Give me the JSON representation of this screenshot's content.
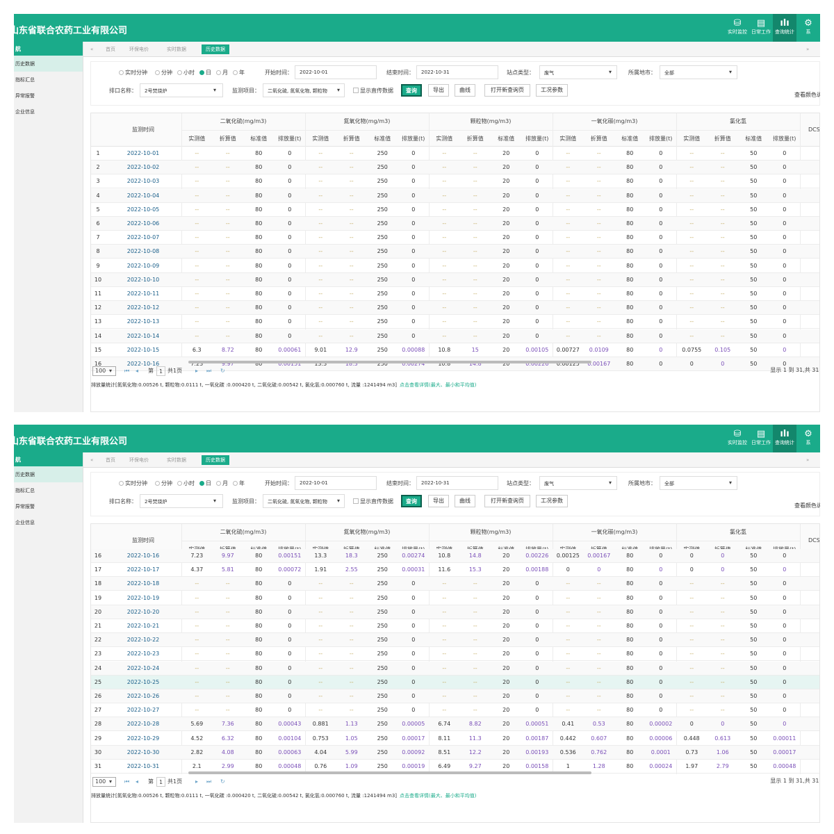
{
  "app": {
    "company": "山东省联合农药工业有限公司",
    "nav": [
      {
        "label": "实时监控",
        "icon": "database-icon"
      },
      {
        "label": "日常工作",
        "icon": "briefcase-icon"
      },
      {
        "label": "查询统计",
        "icon": "chart-icon"
      },
      {
        "label": "系",
        "icon": "gear-icon"
      }
    ],
    "sidebar_title": "航",
    "sidebar": [
      "历史数据",
      "指标汇总",
      "异常报警",
      "企业信息"
    ],
    "tabs": [
      "首页",
      "环保电价",
      "实时数据",
      "历史数据"
    ],
    "accent": "#1aab8a"
  },
  "filters": {
    "granularity": [
      "实时分钟",
      "分钟",
      "小时",
      "日",
      "月",
      "年"
    ],
    "granularity_selected": "日",
    "start_label": "开始时间：",
    "start_value": "2022-10-01",
    "end_label": "结束时间：",
    "end_value": "2022-10-31",
    "station_type_label": "站点类型：",
    "station_type_value": "废气",
    "region_label": "所属地市：",
    "region_value": "全部",
    "outlet_label": "排口名称：",
    "outlet_value": "2号焚烧炉",
    "item_label": "监测项目：",
    "item_value": "二氧化硫, 氮氧化物, 颗粒物",
    "show_checkbox": "显示直传数据",
    "buttons": [
      "查询",
      "导出",
      "曲线",
      "打开新查询页",
      "工况参数"
    ],
    "color_legend_link": "查看颜色说明"
  },
  "table": {
    "time_header": "监测时间",
    "groups": [
      "二氧化硫(mg/m3)",
      "氮氧化物(mg/m3)",
      "颗粒物(mg/m3)",
      "一氧化碳(mg/m3)",
      "氯化氢"
    ],
    "subcols": [
      "实测值",
      "折算值",
      "标准值",
      "排放量(t)"
    ],
    "dcs_header": "DCS温度(",
    "rows": [
      [
        "2022-10-01",
        "--",
        "--",
        "80",
        "0",
        "--",
        "--",
        "250",
        "0",
        "--",
        "--",
        "20",
        "0",
        "--",
        "--",
        "80",
        "0",
        "--",
        "--",
        "50",
        "0",
        "/"
      ],
      [
        "2022-10-02",
        "--",
        "--",
        "80",
        "0",
        "--",
        "--",
        "250",
        "0",
        "--",
        "--",
        "20",
        "0",
        "--",
        "--",
        "80",
        "0",
        "--",
        "--",
        "50",
        "0",
        "/"
      ],
      [
        "2022-10-03",
        "--",
        "--",
        "80",
        "0",
        "--",
        "--",
        "250",
        "0",
        "--",
        "--",
        "20",
        "0",
        "--",
        "--",
        "80",
        "0",
        "--",
        "--",
        "50",
        "0",
        "/"
      ],
      [
        "2022-10-04",
        "--",
        "--",
        "80",
        "0",
        "--",
        "--",
        "250",
        "0",
        "--",
        "--",
        "20",
        "0",
        "--",
        "--",
        "80",
        "0",
        "--",
        "--",
        "50",
        "0",
        "/"
      ],
      [
        "2022-10-05",
        "--",
        "--",
        "80",
        "0",
        "--",
        "--",
        "250",
        "0",
        "--",
        "--",
        "20",
        "0",
        "--",
        "--",
        "80",
        "0",
        "--",
        "--",
        "50",
        "0",
        "/"
      ],
      [
        "2022-10-06",
        "--",
        "--",
        "80",
        "0",
        "--",
        "--",
        "250",
        "0",
        "--",
        "--",
        "20",
        "0",
        "--",
        "--",
        "80",
        "0",
        "--",
        "--",
        "50",
        "0",
        "/"
      ],
      [
        "2022-10-07",
        "--",
        "--",
        "80",
        "0",
        "--",
        "--",
        "250",
        "0",
        "--",
        "--",
        "20",
        "0",
        "--",
        "--",
        "80",
        "0",
        "--",
        "--",
        "50",
        "0",
        "/"
      ],
      [
        "2022-10-08",
        "--",
        "--",
        "80",
        "0",
        "--",
        "--",
        "250",
        "0",
        "--",
        "--",
        "20",
        "0",
        "--",
        "--",
        "80",
        "0",
        "--",
        "--",
        "50",
        "0",
        "/"
      ],
      [
        "2022-10-09",
        "--",
        "--",
        "80",
        "0",
        "--",
        "--",
        "250",
        "0",
        "--",
        "--",
        "20",
        "0",
        "--",
        "--",
        "80",
        "0",
        "--",
        "--",
        "50",
        "0",
        "/"
      ],
      [
        "2022-10-10",
        "--",
        "--",
        "80",
        "0",
        "--",
        "--",
        "250",
        "0",
        "--",
        "--",
        "20",
        "0",
        "--",
        "--",
        "80",
        "0",
        "--",
        "--",
        "50",
        "0",
        "/"
      ],
      [
        "2022-10-11",
        "--",
        "--",
        "80",
        "0",
        "--",
        "--",
        "250",
        "0",
        "--",
        "--",
        "20",
        "0",
        "--",
        "--",
        "80",
        "0",
        "--",
        "--",
        "50",
        "0",
        "/"
      ],
      [
        "2022-10-12",
        "--",
        "--",
        "80",
        "0",
        "--",
        "--",
        "250",
        "0",
        "--",
        "--",
        "20",
        "0",
        "--",
        "--",
        "80",
        "0",
        "--",
        "--",
        "50",
        "0",
        "/"
      ],
      [
        "2022-10-13",
        "--",
        "--",
        "80",
        "0",
        "--",
        "--",
        "250",
        "0",
        "--",
        "--",
        "20",
        "0",
        "--",
        "--",
        "80",
        "0",
        "--",
        "--",
        "50",
        "0",
        "/"
      ],
      [
        "2022-10-14",
        "--",
        "--",
        "80",
        "0",
        "--",
        "--",
        "250",
        "0",
        "--",
        "--",
        "20",
        "0",
        "--",
        "--",
        "80",
        "0",
        "--",
        "--",
        "50",
        "0",
        "/"
      ],
      [
        "2022-10-15",
        "6.3",
        "8.72",
        "80",
        "0.00061",
        "9.01",
        "12.9",
        "250",
        "0.00088",
        "10.8",
        "15",
        "20",
        "0.00105",
        "0.00727",
        "0.0109",
        "80",
        "0",
        "0.0755",
        "0.105",
        "50",
        "0",
        "/"
      ],
      [
        "2022-10-16",
        "7.23",
        "9.97",
        "80",
        "0.00151",
        "13.3",
        "18.3",
        "250",
        "0.00274",
        "10.8",
        "14.8",
        "20",
        "0.00226",
        "0.00125",
        "0.00167",
        "80",
        "0",
        "0",
        "0",
        "50",
        "0",
        "/"
      ],
      [
        "2022-10-17",
        "4.37",
        "5.81",
        "80",
        "0.00072",
        "1.91",
        "2.55",
        "250",
        "0.00031",
        "11.6",
        "15.3",
        "20",
        "0.00188",
        "0",
        "0",
        "80",
        "0",
        "0",
        "0",
        "50",
        "0",
        "/"
      ],
      [
        "2022-10-18",
        "--",
        "--",
        "80",
        "0",
        "--",
        "--",
        "250",
        "0",
        "--",
        "--",
        "20",
        "0",
        "--",
        "--",
        "80",
        "0",
        "--",
        "--",
        "50",
        "0",
        "/"
      ],
      [
        "2022-10-19",
        "--",
        "--",
        "80",
        "0",
        "--",
        "--",
        "250",
        "0",
        "--",
        "--",
        "20",
        "0",
        "--",
        "--",
        "80",
        "0",
        "--",
        "--",
        "50",
        "0",
        "/"
      ],
      [
        "2022-10-20",
        "--",
        "--",
        "80",
        "0",
        "--",
        "--",
        "250",
        "0",
        "--",
        "--",
        "20",
        "0",
        "--",
        "--",
        "80",
        "0",
        "--",
        "--",
        "50",
        "0",
        "/"
      ],
      [
        "2022-10-21",
        "--",
        "--",
        "80",
        "0",
        "--",
        "--",
        "250",
        "0",
        "--",
        "--",
        "20",
        "0",
        "--",
        "--",
        "80",
        "0",
        "--",
        "--",
        "50",
        "0",
        "/"
      ],
      [
        "2022-10-22",
        "--",
        "--",
        "80",
        "0",
        "--",
        "--",
        "250",
        "0",
        "--",
        "--",
        "20",
        "0",
        "--",
        "--",
        "80",
        "0",
        "--",
        "--",
        "50",
        "0",
        "/"
      ],
      [
        "2022-10-23",
        "--",
        "--",
        "80",
        "0",
        "--",
        "--",
        "250",
        "0",
        "--",
        "--",
        "20",
        "0",
        "--",
        "--",
        "80",
        "0",
        "--",
        "--",
        "50",
        "0",
        "/"
      ],
      [
        "2022-10-24",
        "--",
        "--",
        "80",
        "0",
        "--",
        "--",
        "250",
        "0",
        "--",
        "--",
        "20",
        "0",
        "--",
        "--",
        "80",
        "0",
        "--",
        "--",
        "50",
        "0",
        "/"
      ],
      [
        "2022-10-25",
        "--",
        "--",
        "80",
        "0",
        "--",
        "--",
        "250",
        "0",
        "--",
        "--",
        "20",
        "0",
        "--",
        "--",
        "80",
        "0",
        "--",
        "--",
        "50",
        "0",
        "/"
      ],
      [
        "2022-10-26",
        "--",
        "--",
        "80",
        "0",
        "--",
        "--",
        "250",
        "0",
        "--",
        "--",
        "20",
        "0",
        "--",
        "--",
        "80",
        "0",
        "--",
        "--",
        "50",
        "0",
        "/"
      ],
      [
        "2022-10-27",
        "--",
        "--",
        "80",
        "0",
        "--",
        "--",
        "250",
        "0",
        "--",
        "--",
        "20",
        "0",
        "--",
        "--",
        "80",
        "0",
        "--",
        "--",
        "50",
        "0",
        "/"
      ],
      [
        "2022-10-28",
        "5.69",
        "7.36",
        "80",
        "0.00043",
        "0.881",
        "1.13",
        "250",
        "0.00005",
        "6.74",
        "8.82",
        "20",
        "0.00051",
        "0.41",
        "0.53",
        "80",
        "0.00002",
        "0",
        "0",
        "50",
        "0",
        "/"
      ],
      [
        "2022-10-29",
        "4.52",
        "6.32",
        "80",
        "0.00104",
        "0.753",
        "1.05",
        "250",
        "0.00017",
        "8.11",
        "11.3",
        "20",
        "0.00187",
        "0.442",
        "0.607",
        "80",
        "0.00006",
        "0.448",
        "0.613",
        "50",
        "0.00011",
        "/"
      ],
      [
        "2022-10-30",
        "2.82",
        "4.08",
        "80",
        "0.00063",
        "4.04",
        "5.99",
        "250",
        "0.00092",
        "8.51",
        "12.2",
        "20",
        "0.00193",
        "0.536",
        "0.762",
        "80",
        "0.0001",
        "0.73",
        "1.06",
        "50",
        "0.00017",
        "/"
      ],
      [
        "2022-10-31",
        "2.1",
        "2.99",
        "80",
        "0.00048",
        "0.76",
        "1.09",
        "250",
        "0.00019",
        "6.49",
        "9.27",
        "20",
        "0.00158",
        "1",
        "1.28",
        "80",
        "0.00024",
        "1.97",
        "2.79",
        "50",
        "0.00048",
        "/"
      ]
    ],
    "highlight_row": 25
  },
  "pager": {
    "page_size": "100",
    "page_label": "第",
    "page_num": "1",
    "total_pages": "共1页",
    "range_text": "显示 1 到 31,共 31 记录"
  },
  "summary": {
    "text": "排放量统计[氮氧化物:0.00526 t, 颗粒物:0.0111 t, 一氧化碳 :0.000420 t, 二氧化硫:0.00542 t, 氯化氢:0.000760 t, 流量 :1241494 m3]",
    "note": "点击查看详情(最大、最小和平均值)"
  },
  "colors": {
    "link": "#7a4fb8",
    "dash": "#c2a95d",
    "highlight_row": "#e6f5f2"
  }
}
